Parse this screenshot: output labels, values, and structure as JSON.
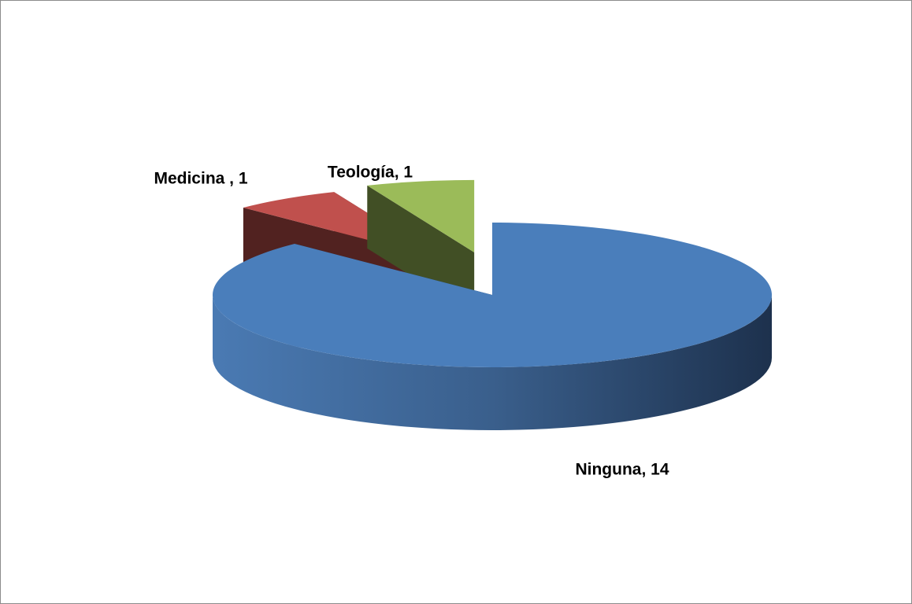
{
  "chart_data": {
    "type": "pie",
    "values": [
      14,
      1,
      1
    ],
    "value_labels": [
      "Ninguna, 14",
      "Medicina , 1",
      "Teología, 1"
    ],
    "colors": [
      "#4a7ebb",
      "#c0504d",
      "#9bbb59"
    ]
  }
}
